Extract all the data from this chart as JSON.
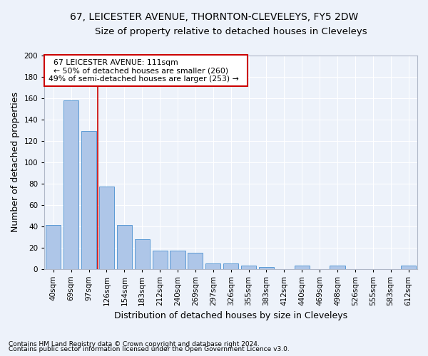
{
  "title": "67, LEICESTER AVENUE, THORNTON-CLEVELEYS, FY5 2DW",
  "subtitle": "Size of property relative to detached houses in Cleveleys",
  "xlabel": "Distribution of detached houses by size in Cleveleys",
  "ylabel": "Number of detached properties",
  "bar_labels": [
    "40sqm",
    "69sqm",
    "97sqm",
    "126sqm",
    "154sqm",
    "183sqm",
    "212sqm",
    "240sqm",
    "269sqm",
    "297sqm",
    "326sqm",
    "355sqm",
    "383sqm",
    "412sqm",
    "440sqm",
    "469sqm",
    "498sqm",
    "526sqm",
    "555sqm",
    "583sqm",
    "612sqm"
  ],
  "bar_heights": [
    41,
    158,
    129,
    77,
    41,
    28,
    17,
    17,
    15,
    5,
    5,
    3,
    2,
    0,
    3,
    0,
    3,
    0,
    0,
    0,
    3
  ],
  "bar_color": "#aec6e8",
  "bar_edge_color": "#5b9bd5",
  "annotation_title": "67 LEICESTER AVENUE: 111sqm",
  "annotation_line1": "← 50% of detached houses are smaller (260)",
  "annotation_line2": "49% of semi-detached houses are larger (253) →",
  "annotation_box_color": "#ffffff",
  "annotation_border_color": "#cc0000",
  "ylim": [
    0,
    200
  ],
  "yticks": [
    0,
    20,
    40,
    60,
    80,
    100,
    120,
    140,
    160,
    180,
    200
  ],
  "footnote1": "Contains HM Land Registry data © Crown copyright and database right 2024.",
  "footnote2": "Contains public sector information licensed under the Open Government Licence v3.0.",
  "bg_color": "#edf2fa",
  "plot_bg_color": "#edf2fa",
  "grid_color": "#ffffff",
  "title_fontsize": 10,
  "subtitle_fontsize": 9.5,
  "axis_label_fontsize": 9,
  "tick_fontsize": 7.5
}
